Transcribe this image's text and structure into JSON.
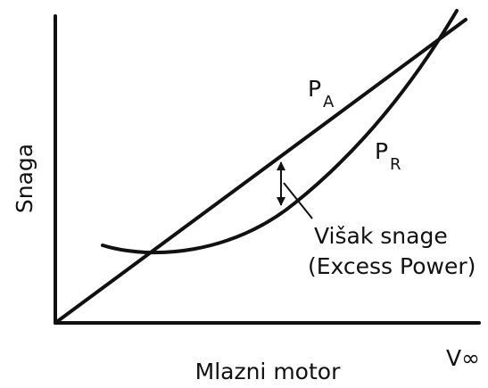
{
  "y_axis_label": "Snaga",
  "x_axis_label": "V∞",
  "caption": "Mlazni motor",
  "curves": [
    {
      "label": "P",
      "subscript": "A"
    },
    {
      "label": "P",
      "subscript": "R"
    }
  ],
  "annotation": {
    "line1": "Višak snage",
    "line2": "(Excess Power)"
  }
}
